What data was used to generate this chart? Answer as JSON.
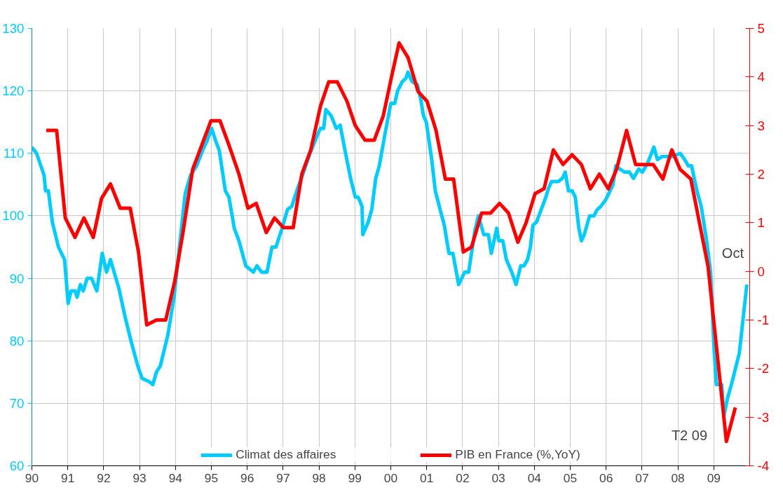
{
  "chart_data": {
    "type": "line",
    "xlim": [
      1990,
      2010
    ],
    "ylim": [
      60,
      130
    ],
    "y2lim": [
      -4,
      5
    ],
    "xticks": [
      {
        "value": 1990,
        "label": "90"
      },
      {
        "value": 1991,
        "label": "91"
      },
      {
        "value": 1992,
        "label": "92"
      },
      {
        "value": 1993,
        "label": "93"
      },
      {
        "value": 1994,
        "label": "94"
      },
      {
        "value": 1995,
        "label": "95"
      },
      {
        "value": 1996,
        "label": "96"
      },
      {
        "value": 1997,
        "label": "97"
      },
      {
        "value": 1998,
        "label": "98"
      },
      {
        "value": 1999,
        "label": "99"
      },
      {
        "value": 2000,
        "label": "00"
      },
      {
        "value": 2001,
        "label": "01"
      },
      {
        "value": 2002,
        "label": "02"
      },
      {
        "value": 2003,
        "label": "03"
      },
      {
        "value": 2004,
        "label": "04"
      },
      {
        "value": 2005,
        "label": "05"
      },
      {
        "value": 2006,
        "label": "06"
      },
      {
        "value": 2007,
        "label": "07"
      },
      {
        "value": 2008,
        "label": "08"
      },
      {
        "value": 2009,
        "label": "09"
      }
    ],
    "yticks": [
      60,
      70,
      80,
      90,
      100,
      110,
      120,
      130
    ],
    "y2ticks": [
      -4,
      -3,
      -2,
      -1,
      0,
      1,
      2,
      3,
      4,
      5
    ],
    "grid": true,
    "legend": "bottom",
    "line_style": "solid",
    "marker": "none",
    "series": [
      {
        "name": "Climat des affaires",
        "color": "#00ccff",
        "x": [
          1990.0,
          1990.13,
          1990.34,
          1990.38,
          1990.46,
          1990.57,
          1990.74,
          1990.91,
          1991.01,
          1991.09,
          1991.2,
          1991.26,
          1991.35,
          1991.43,
          1991.54,
          1991.66,
          1991.81,
          1991.96,
          1992.08,
          1992.19,
          1992.29,
          1992.42,
          1992.59,
          1992.76,
          1992.95,
          1993.07,
          1993.26,
          1993.37,
          1993.47,
          1993.58,
          1993.79,
          1993.96,
          1994.13,
          1994.27,
          1994.42,
          1994.59,
          1994.76,
          1994.88,
          1995.01,
          1995.12,
          1995.22,
          1995.39,
          1995.49,
          1995.64,
          1995.77,
          1995.96,
          1996.17,
          1996.27,
          1996.4,
          1996.55,
          1996.69,
          1996.8,
          1996.97,
          1997.12,
          1997.24,
          1997.41,
          1997.54,
          1997.75,
          1997.96,
          1998.04,
          1998.13,
          1998.19,
          1998.34,
          1998.48,
          1998.59,
          1998.74,
          1998.88,
          1999.01,
          1999.09,
          1999.2,
          1999.22,
          1999.37,
          1999.47,
          1999.58,
          1999.68,
          1999.85,
          2000.0,
          2000.11,
          2000.19,
          2000.32,
          2000.42,
          2000.48,
          2000.59,
          2000.74,
          2000.84,
          2000.91,
          2000.99,
          2001.14,
          2001.24,
          2001.33,
          2001.49,
          2001.62,
          2001.73,
          2001.89,
          2002.06,
          2002.17,
          2002.34,
          2002.44,
          2002.59,
          2002.72,
          2002.8,
          2002.95,
          2003.01,
          2003.12,
          2003.22,
          2003.37,
          2003.49,
          2003.62,
          2003.71,
          2003.81,
          2003.89,
          2003.96,
          2004.06,
          2004.19,
          2004.32,
          2004.4,
          2004.48,
          2004.67,
          2004.78,
          2004.86,
          2004.95,
          2005.05,
          2005.14,
          2005.24,
          2005.31,
          2005.39,
          2005.54,
          2005.66,
          2005.75,
          2005.85,
          2005.98,
          2006.11,
          2006.19,
          2006.27,
          2006.38,
          2006.51,
          2006.65,
          2006.76,
          2006.91,
          2007.01,
          2007.16,
          2007.33,
          2007.43,
          2007.56,
          2007.85,
          2008.06,
          2008.19,
          2008.29,
          2008.38,
          2008.53,
          2008.65,
          2008.8,
          2008.91,
          2009.01,
          2009.07,
          2009.22,
          2009.28,
          2009.39,
          2009.49,
          2009.71,
          2009.92
        ],
        "values": [
          111,
          110,
          106.5,
          104,
          104,
          99,
          95,
          93,
          86,
          88,
          88,
          87,
          89,
          88,
          90,
          90,
          88,
          94,
          91,
          93,
          91,
          88.5,
          84,
          80,
          76,
          74,
          73.5,
          73,
          75,
          76,
          81,
          87,
          96,
          103.5,
          106.5,
          108,
          110.5,
          112,
          114,
          112,
          110.5,
          104,
          103,
          98,
          96,
          92,
          91,
          92,
          91,
          91,
          95,
          95,
          98,
          101,
          101.5,
          104.5,
          106.5,
          110,
          113,
          114,
          114,
          117,
          116,
          114,
          114.5,
          110,
          106,
          103,
          103,
          101.5,
          97,
          99,
          101,
          106,
          108,
          113.5,
          118,
          118,
          120,
          121.5,
          122,
          123,
          121.5,
          121,
          118.5,
          116,
          115,
          109,
          104,
          102,
          98.5,
          94,
          94,
          89,
          91,
          91,
          97.5,
          100,
          97,
          97,
          94,
          98,
          96,
          96,
          93,
          91,
          89,
          92,
          92,
          93,
          95,
          98.5,
          99,
          101,
          103,
          104.5,
          105.5,
          105.5,
          106,
          107,
          104,
          104,
          103,
          98,
          96,
          97,
          100,
          100,
          101,
          101.5,
          102.5,
          104,
          105,
          108,
          107.5,
          107,
          107,
          106,
          107.5,
          107,
          108.5,
          111,
          109,
          109.5,
          109.5,
          110,
          109,
          108,
          108,
          104,
          101.5,
          96,
          91,
          78.5,
          73,
          73,
          68,
          71,
          73,
          78,
          89
        ]
      },
      {
        "name": "PIB en France (%,YoY)",
        "color": "#ff0000",
        "axis": "y2",
        "x": [
          1990.4,
          1990.69,
          1990.93,
          1991.2,
          1991.45,
          1991.71,
          1991.94,
          1992.19,
          1992.46,
          1992.74,
          1992.97,
          1993.2,
          1993.47,
          1993.73,
          1993.98,
          1994.21,
          1994.48,
          1994.99,
          1995.24,
          1995.49,
          1995.77,
          1996.02,
          1996.25,
          1996.53,
          1996.76,
          1997.01,
          1997.28,
          1997.52,
          1997.77,
          1998.04,
          1998.27,
          1998.51,
          1998.78,
          1999.01,
          1999.28,
          1999.54,
          1999.79,
          2000.02,
          2000.23,
          2000.48,
          2000.76,
          2001.01,
          2001.26,
          2001.52,
          2001.75,
          2002.02,
          2002.25,
          2002.53,
          2002.78,
          2003.03,
          2003.28,
          2003.54,
          2003.77,
          2004.02,
          2004.27,
          2004.53,
          2004.8,
          2005.05,
          2005.31,
          2005.56,
          2005.81,
          2006.06,
          2006.29,
          2006.57,
          2006.82,
          2007.31,
          2007.58,
          2007.83,
          2008.06,
          2008.36,
          2008.84,
          2009.35,
          2009.6
        ],
        "values": [
          2.9,
          2.9,
          1.1,
          0.7,
          1.1,
          0.7,
          1.5,
          1.8,
          1.3,
          1.3,
          0.4,
          -1.1,
          -1.0,
          -1.0,
          -0.2,
          0.8,
          2.1,
          3.1,
          3.1,
          2.6,
          2.0,
          1.3,
          1.4,
          0.8,
          1.1,
          0.9,
          0.9,
          2.0,
          2.5,
          3.4,
          3.9,
          3.9,
          3.5,
          3.0,
          2.7,
          2.7,
          3.2,
          4.0,
          4.7,
          4.4,
          3.7,
          3.5,
          2.9,
          1.9,
          1.9,
          0.4,
          0.5,
          1.2,
          1.2,
          1.4,
          1.2,
          0.6,
          1.0,
          1.6,
          1.7,
          2.5,
          2.2,
          2.4,
          2.2,
          1.7,
          2.0,
          1.7,
          2.1,
          2.9,
          2.2,
          2.2,
          1.9,
          2.5,
          2.1,
          1.9,
          0.1,
          -3.5,
          -2.8
        ]
      }
    ],
    "annotations": [
      "Oct",
      "T2 09"
    ]
  }
}
